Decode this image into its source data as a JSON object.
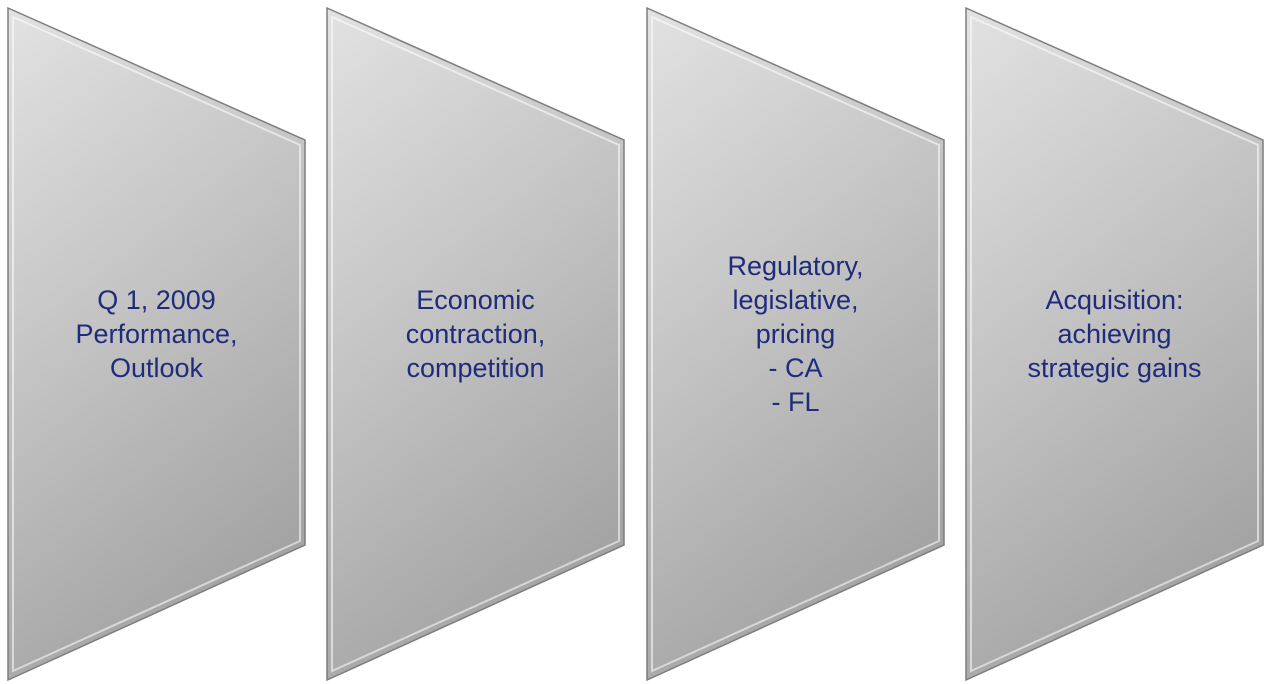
{
  "items": [
    {
      "lines": [
        "Q 1, 2009",
        "Performance,",
        "Outlook"
      ]
    },
    {
      "lines": [
        "Economic",
        "contraction,",
        "competition"
      ]
    },
    {
      "lines": [
        "Regulatory,",
        "legislative,",
        "pricing",
        "- CA",
        "- FL"
      ]
    },
    {
      "lines": [
        "Acquisition:",
        "achieving",
        "strategic gains"
      ]
    }
  ]
}
